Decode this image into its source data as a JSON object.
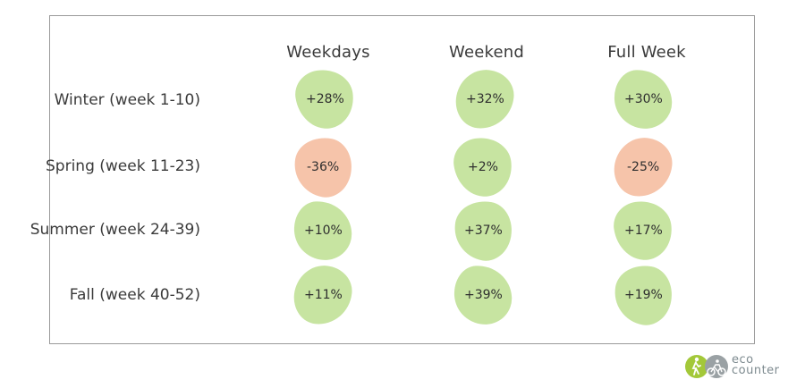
{
  "chart_data": {
    "type": "table",
    "columns": [
      "Weekdays",
      "Weekend",
      "Full Week"
    ],
    "rows": [
      {
        "label": "Winter (week 1-10)",
        "values": [
          "+28%",
          "+32%",
          "+30%"
        ],
        "numeric": [
          28,
          32,
          30
        ]
      },
      {
        "label": "Spring (week 11-23)",
        "values": [
          "-36%",
          "+2%",
          "-25%"
        ],
        "numeric": [
          -36,
          2,
          -25
        ]
      },
      {
        "label": "Summer (week 24-39)",
        "values": [
          "+10%",
          "+37%",
          "+17%"
        ],
        "numeric": [
          10,
          37,
          17
        ]
      },
      {
        "label": "Fall (week 40-52)",
        "values": [
          "+11%",
          "+39%",
          "+19%"
        ],
        "numeric": [
          11,
          39,
          19
        ]
      }
    ],
    "colors": {
      "positive": "#c7e4a1",
      "negative": "#f6c4aa"
    }
  },
  "logo": {
    "line1": "eco",
    "line2": "counter",
    "icon": "eco-counter-logo-icon",
    "colors": {
      "green": "#a3c839",
      "gray": "#9aa1a4"
    }
  }
}
